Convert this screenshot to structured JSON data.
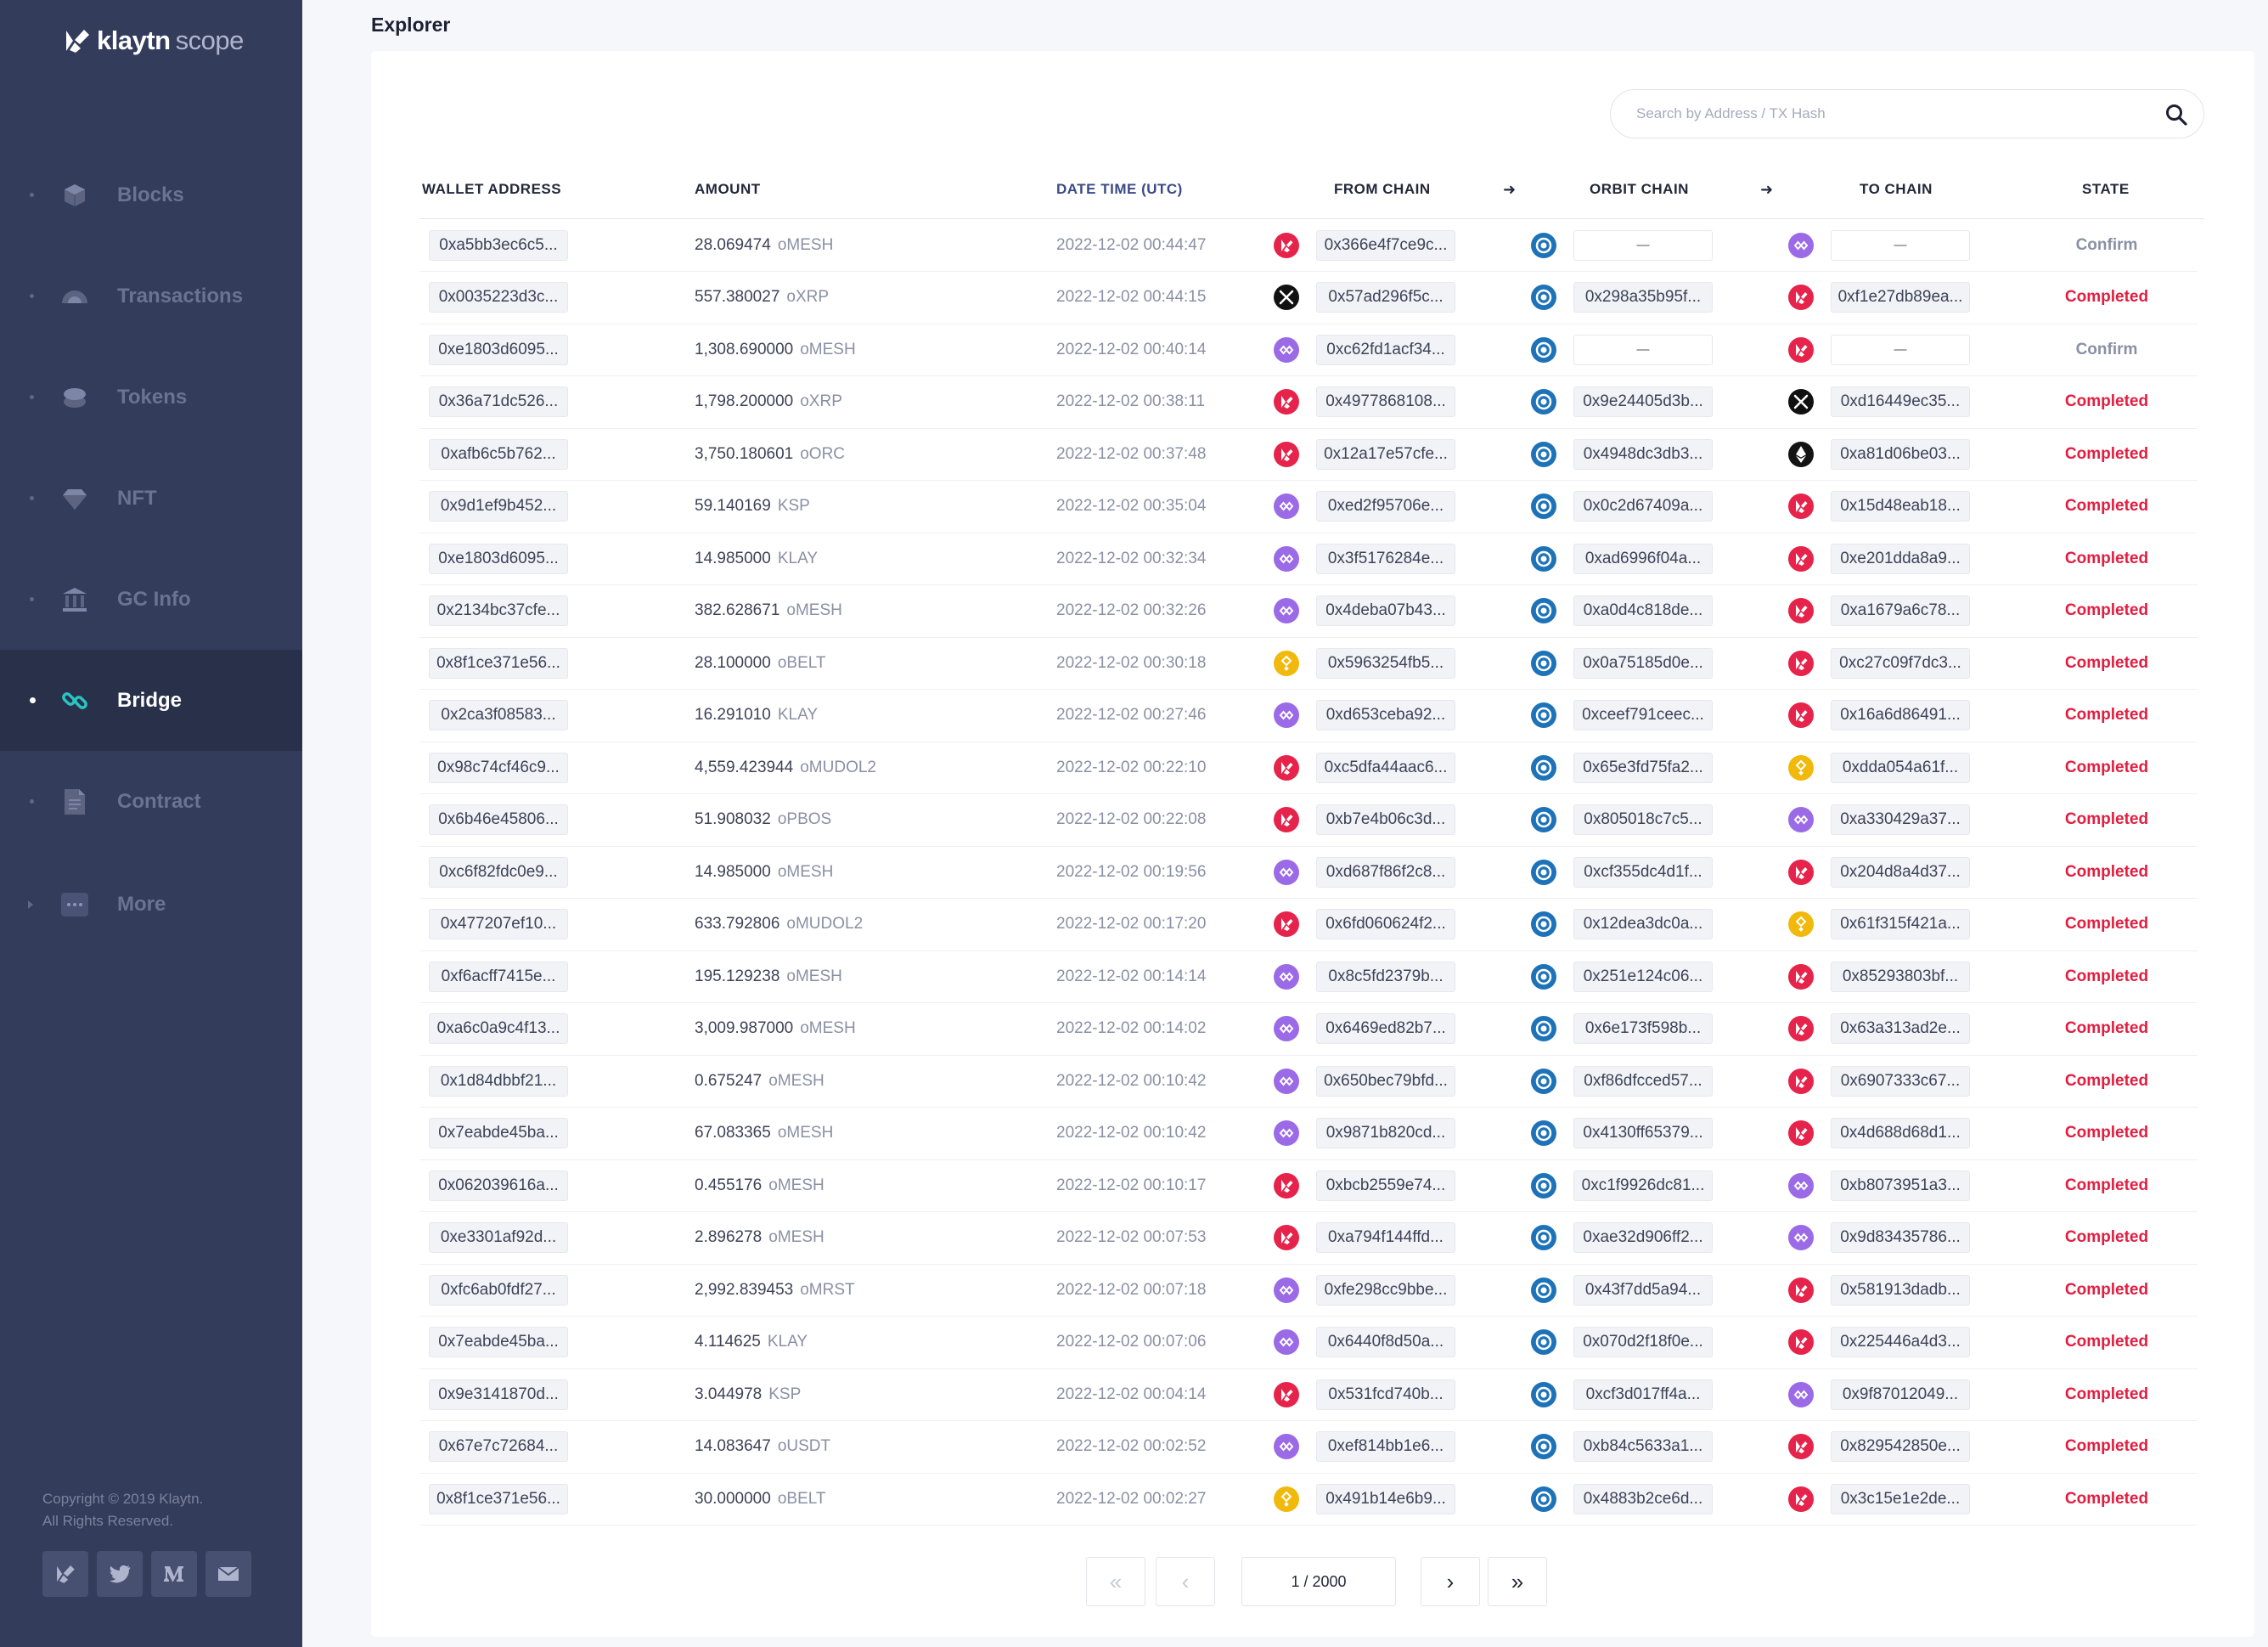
{
  "app": {
    "brand": "klaytn",
    "product": "scope"
  },
  "sidebar": {
    "items": [
      {
        "label": "Blocks",
        "icon": "cube-icon",
        "active": false
      },
      {
        "label": "Transactions",
        "icon": "transactions-icon",
        "active": false
      },
      {
        "label": "Tokens",
        "icon": "coins-icon",
        "active": false
      },
      {
        "label": "NFT",
        "icon": "diamond-icon",
        "active": false
      },
      {
        "label": "GC Info",
        "icon": "building-icon",
        "active": false
      },
      {
        "label": "Bridge",
        "icon": "link-icon",
        "active": true
      },
      {
        "label": "Contract",
        "icon": "document-icon",
        "active": false
      },
      {
        "label": "More",
        "icon": "more-icon",
        "active": false
      }
    ],
    "copyright_line1": "Copyright © 2019 Klaytn.",
    "copyright_line2": "All Rights Reserved.",
    "social": [
      "klaytn-icon",
      "twitter-icon",
      "medium-icon",
      "mail-icon"
    ]
  },
  "page": {
    "title": "Explorer"
  },
  "search": {
    "placeholder": "Search by Address / TX Hash"
  },
  "table": {
    "headers": {
      "wallet": "WALLET ADDRESS",
      "amount": "AMOUNT",
      "datetime": "DATE TIME (UTC)",
      "from_chain": "FROM CHAIN",
      "orbit_chain": "ORBIT CHAIN",
      "to_chain": "TO CHAIN",
      "state": "STATE"
    },
    "rows": [
      {
        "wallet": "0xa5bb3ec6c5...",
        "amount": "28.069474",
        "token": "oMESH",
        "time": "2022-12-02 00:44:47",
        "from_icon": "klaytn",
        "from": "0x366e4f7ce9c...",
        "orbit": "—",
        "to_icon": "polygon",
        "to": "—",
        "state": "Confirm"
      },
      {
        "wallet": "0x0035223d3c...",
        "amount": "557.380027",
        "token": "oXRP",
        "time": "2022-12-02 00:44:15",
        "from_icon": "xrp",
        "from": "0x57ad296f5c...",
        "orbit": "0x298a35b95f...",
        "to_icon": "klaytn",
        "to": "0xf1e27db89ea...",
        "state": "Completed"
      },
      {
        "wallet": "0xe1803d6095...",
        "amount": "1,308.690000",
        "token": "oMESH",
        "time": "2022-12-02 00:40:14",
        "from_icon": "polygon",
        "from": "0xc62fd1acf34...",
        "orbit": "—",
        "to_icon": "klaytn",
        "to": "—",
        "state": "Confirm"
      },
      {
        "wallet": "0x36a71dc526...",
        "amount": "1,798.200000",
        "token": "oXRP",
        "time": "2022-12-02 00:38:11",
        "from_icon": "klaytn",
        "from": "0x4977868108...",
        "orbit": "0x9e24405d3b...",
        "to_icon": "xrp",
        "to": "0xd16449ec35...",
        "state": "Completed"
      },
      {
        "wallet": "0xafb6c5b762...",
        "amount": "3,750.180601",
        "token": "oORC",
        "time": "2022-12-02 00:37:48",
        "from_icon": "klaytn",
        "from": "0x12a17e57cfe...",
        "orbit": "0x4948dc3db3...",
        "to_icon": "ethereum",
        "to": "0xa81d06be03...",
        "state": "Completed"
      },
      {
        "wallet": "0x9d1ef9b452...",
        "amount": "59.140169",
        "token": "KSP",
        "time": "2022-12-02 00:35:04",
        "from_icon": "polygon",
        "from": "0xed2f95706e...",
        "orbit": "0x0c2d67409a...",
        "to_icon": "klaytn",
        "to": "0x15d48eab18...",
        "state": "Completed"
      },
      {
        "wallet": "0xe1803d6095...",
        "amount": "14.985000",
        "token": "KLAY",
        "time": "2022-12-02 00:32:34",
        "from_icon": "polygon",
        "from": "0x3f5176284e...",
        "orbit": "0xad6996f04a...",
        "to_icon": "klaytn",
        "to": "0xe201dda8a9...",
        "state": "Completed"
      },
      {
        "wallet": "0x2134bc37cfe...",
        "amount": "382.628671",
        "token": "oMESH",
        "time": "2022-12-02 00:32:26",
        "from_icon": "polygon",
        "from": "0x4deba07b43...",
        "orbit": "0xa0d4c818de...",
        "to_icon": "klaytn",
        "to": "0xa1679a6c78...",
        "state": "Completed"
      },
      {
        "wallet": "0x8f1ce371e56...",
        "amount": "28.100000",
        "token": "oBELT",
        "time": "2022-12-02 00:30:18",
        "from_icon": "bnb",
        "from": "0x5963254fb5...",
        "orbit": "0x0a75185d0e...",
        "to_icon": "klaytn",
        "to": "0xc27c09f7dc3...",
        "state": "Completed"
      },
      {
        "wallet": "0x2ca3f08583...",
        "amount": "16.291010",
        "token": "KLAY",
        "time": "2022-12-02 00:27:46",
        "from_icon": "polygon",
        "from": "0xd653ceba92...",
        "orbit": "0xceef791ceec...",
        "to_icon": "klaytn",
        "to": "0x16a6d86491...",
        "state": "Completed"
      },
      {
        "wallet": "0x98c74cf46c9...",
        "amount": "4,559.423944",
        "token": "oMUDOL2",
        "time": "2022-12-02 00:22:10",
        "from_icon": "klaytn",
        "from": "0xc5dfa44aac6...",
        "orbit": "0x65e3fd75fa2...",
        "to_icon": "bnb",
        "to": "0xdda054a61f...",
        "state": "Completed"
      },
      {
        "wallet": "0x6b46e45806...",
        "amount": "51.908032",
        "token": "oPBOS",
        "time": "2022-12-02 00:22:08",
        "from_icon": "klaytn",
        "from": "0xb7e4b06c3d...",
        "orbit": "0x805018c7c5...",
        "to_icon": "polygon",
        "to": "0xa330429a37...",
        "state": "Completed"
      },
      {
        "wallet": "0xc6f82fdc0e9...",
        "amount": "14.985000",
        "token": "oMESH",
        "time": "2022-12-02 00:19:56",
        "from_icon": "polygon",
        "from": "0xd687f86f2c8...",
        "orbit": "0xcf355dc4d1f...",
        "to_icon": "klaytn",
        "to": "0x204d8a4d37...",
        "state": "Completed"
      },
      {
        "wallet": "0x477207ef10...",
        "amount": "633.792806",
        "token": "oMUDOL2",
        "time": "2022-12-02 00:17:20",
        "from_icon": "klaytn",
        "from": "0x6fd060624f2...",
        "orbit": "0x12dea3dc0a...",
        "to_icon": "bnb",
        "to": "0x61f315f421a...",
        "state": "Completed"
      },
      {
        "wallet": "0xf6acff7415e...",
        "amount": "195.129238",
        "token": "oMESH",
        "time": "2022-12-02 00:14:14",
        "from_icon": "polygon",
        "from": "0x8c5fd2379b...",
        "orbit": "0x251e124c06...",
        "to_icon": "klaytn",
        "to": "0x85293803bf...",
        "state": "Completed"
      },
      {
        "wallet": "0xa6c0a9c4f13...",
        "amount": "3,009.987000",
        "token": "oMESH",
        "time": "2022-12-02 00:14:02",
        "from_icon": "polygon",
        "from": "0x6469ed82b7...",
        "orbit": "0x6e173f598b...",
        "to_icon": "klaytn",
        "to": "0x63a313ad2e...",
        "state": "Completed"
      },
      {
        "wallet": "0x1d84dbbf21...",
        "amount": "0.675247",
        "token": "oMESH",
        "time": "2022-12-02 00:10:42",
        "from_icon": "polygon",
        "from": "0x650bec79bfd...",
        "orbit": "0xf86dfcced57...",
        "to_icon": "klaytn",
        "to": "0x6907333c67...",
        "state": "Completed"
      },
      {
        "wallet": "0x7eabde45ba...",
        "amount": "67.083365",
        "token": "oMESH",
        "time": "2022-12-02 00:10:42",
        "from_icon": "polygon",
        "from": "0x9871b820cd...",
        "orbit": "0x4130ff65379...",
        "to_icon": "klaytn",
        "to": "0x4d688d68d1...",
        "state": "Completed"
      },
      {
        "wallet": "0x062039616a...",
        "amount": "0.455176",
        "token": "oMESH",
        "time": "2022-12-02 00:10:17",
        "from_icon": "klaytn",
        "from": "0xbcb2559e74...",
        "orbit": "0xc1f9926dc81...",
        "to_icon": "polygon",
        "to": "0xb8073951a3...",
        "state": "Completed"
      },
      {
        "wallet": "0xe3301af92d...",
        "amount": "2.896278",
        "token": "oMESH",
        "time": "2022-12-02 00:07:53",
        "from_icon": "klaytn",
        "from": "0xa794f144ffd...",
        "orbit": "0xae32d906ff2...",
        "to_icon": "polygon",
        "to": "0x9d83435786...",
        "state": "Completed"
      },
      {
        "wallet": "0xfc6ab0fdf27...",
        "amount": "2,992.839453",
        "token": "oMRST",
        "time": "2022-12-02 00:07:18",
        "from_icon": "polygon",
        "from": "0xfe298cc9bbe...",
        "orbit": "0x43f7dd5a94...",
        "to_icon": "klaytn",
        "to": "0x581913dadb...",
        "state": "Completed"
      },
      {
        "wallet": "0x7eabde45ba...",
        "amount": "4.114625",
        "token": "KLAY",
        "time": "2022-12-02 00:07:06",
        "from_icon": "polygon",
        "from": "0x6440f8d50a...",
        "orbit": "0x070d2f18f0e...",
        "to_icon": "klaytn",
        "to": "0x225446a4d3...",
        "state": "Completed"
      },
      {
        "wallet": "0x9e3141870d...",
        "amount": "3.044978",
        "token": "KSP",
        "time": "2022-12-02 00:04:14",
        "from_icon": "klaytn",
        "from": "0x531fcd740b...",
        "orbit": "0xcf3d017ff4a...",
        "to_icon": "polygon",
        "to": "0x9f87012049...",
        "state": "Completed"
      },
      {
        "wallet": "0x67e7c72684...",
        "amount": "14.083647",
        "token": "oUSDT",
        "time": "2022-12-02 00:02:52",
        "from_icon": "polygon",
        "from": "0xef814bb1e6...",
        "orbit": "0xb84c5633a1...",
        "to_icon": "klaytn",
        "to": "0x829542850e...",
        "state": "Completed"
      },
      {
        "wallet": "0x8f1ce371e56...",
        "amount": "30.000000",
        "token": "oBELT",
        "time": "2022-12-02 00:02:27",
        "from_icon": "bnb",
        "from": "0x491b14e6b9...",
        "orbit": "0x4883b2ce6d...",
        "to_icon": "klaytn",
        "to": "0x3c15e1e2de...",
        "state": "Completed"
      }
    ]
  },
  "pagination": {
    "current": "1",
    "separator": " / ",
    "total": "2000"
  },
  "colors": {
    "sidebar": "#343c5c",
    "sidebar_active": "#28304a",
    "completed": "#e21d40",
    "klaytn": "#e6234a",
    "polygon": "#9b6ae6",
    "bnb": "#f0b90b",
    "orbit": "#1e73b8",
    "ethereum": "#141414",
    "xrp": "#111111"
  }
}
